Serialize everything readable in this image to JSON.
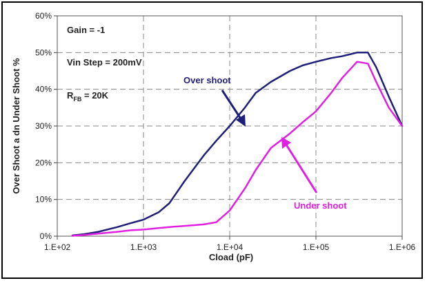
{
  "chart_data": {
    "type": "line",
    "xlabel": "Cload (pF)",
    "ylabel": "Over Shoot a dn Under Shoot %",
    "x_scale": "log",
    "xlim": [
      100,
      1000000
    ],
    "ylim": [
      0,
      60
    ],
    "x_ticks": [
      "1.E+02",
      "1.E+03",
      "1.E+04",
      "1.E+05",
      "1.E+06"
    ],
    "y_ticks": [
      "0%",
      "10%",
      "20%",
      "30%",
      "40%",
      "50%",
      "60%"
    ],
    "grid": true,
    "annotations": {
      "gain": "Gain = -1",
      "vin": "Vin Step = 200mV",
      "rfb_main": "R",
      "rfb_sub": "FB",
      "rfb_value": " = 20K"
    },
    "series": [
      {
        "name": "Over shoot",
        "color": "#1f1f7a",
        "x": [
          150,
          200,
          300,
          500,
          700,
          1000,
          1500,
          2000,
          3000,
          5000,
          7000,
          10000,
          15000,
          20000,
          30000,
          50000,
          70000,
          100000,
          150000,
          200000,
          300000,
          400000,
          500000,
          700000,
          1000000
        ],
        "y": [
          0.2,
          0.5,
          1.2,
          2.5,
          3.5,
          4.5,
          6.5,
          9,
          15,
          22,
          26,
          30,
          35,
          39,
          42,
          45,
          46.5,
          47.5,
          48.5,
          49,
          50,
          50,
          46,
          38,
          30
        ]
      },
      {
        "name": "Under shoot",
        "color": "#e020e0",
        "x": [
          150,
          200,
          300,
          500,
          700,
          1000,
          1500,
          2000,
          3000,
          5000,
          7000,
          10000,
          15000,
          20000,
          30000,
          50000,
          70000,
          100000,
          150000,
          200000,
          300000,
          400000,
          500000,
          700000,
          1000000
        ],
        "y": [
          0.1,
          0.3,
          0.7,
          1.2,
          1.6,
          1.8,
          2.2,
          2.5,
          2.8,
          3.2,
          3.8,
          7,
          13,
          18,
          24,
          28,
          31,
          34,
          39,
          43,
          47.5,
          47,
          42,
          35,
          30
        ]
      }
    ]
  }
}
